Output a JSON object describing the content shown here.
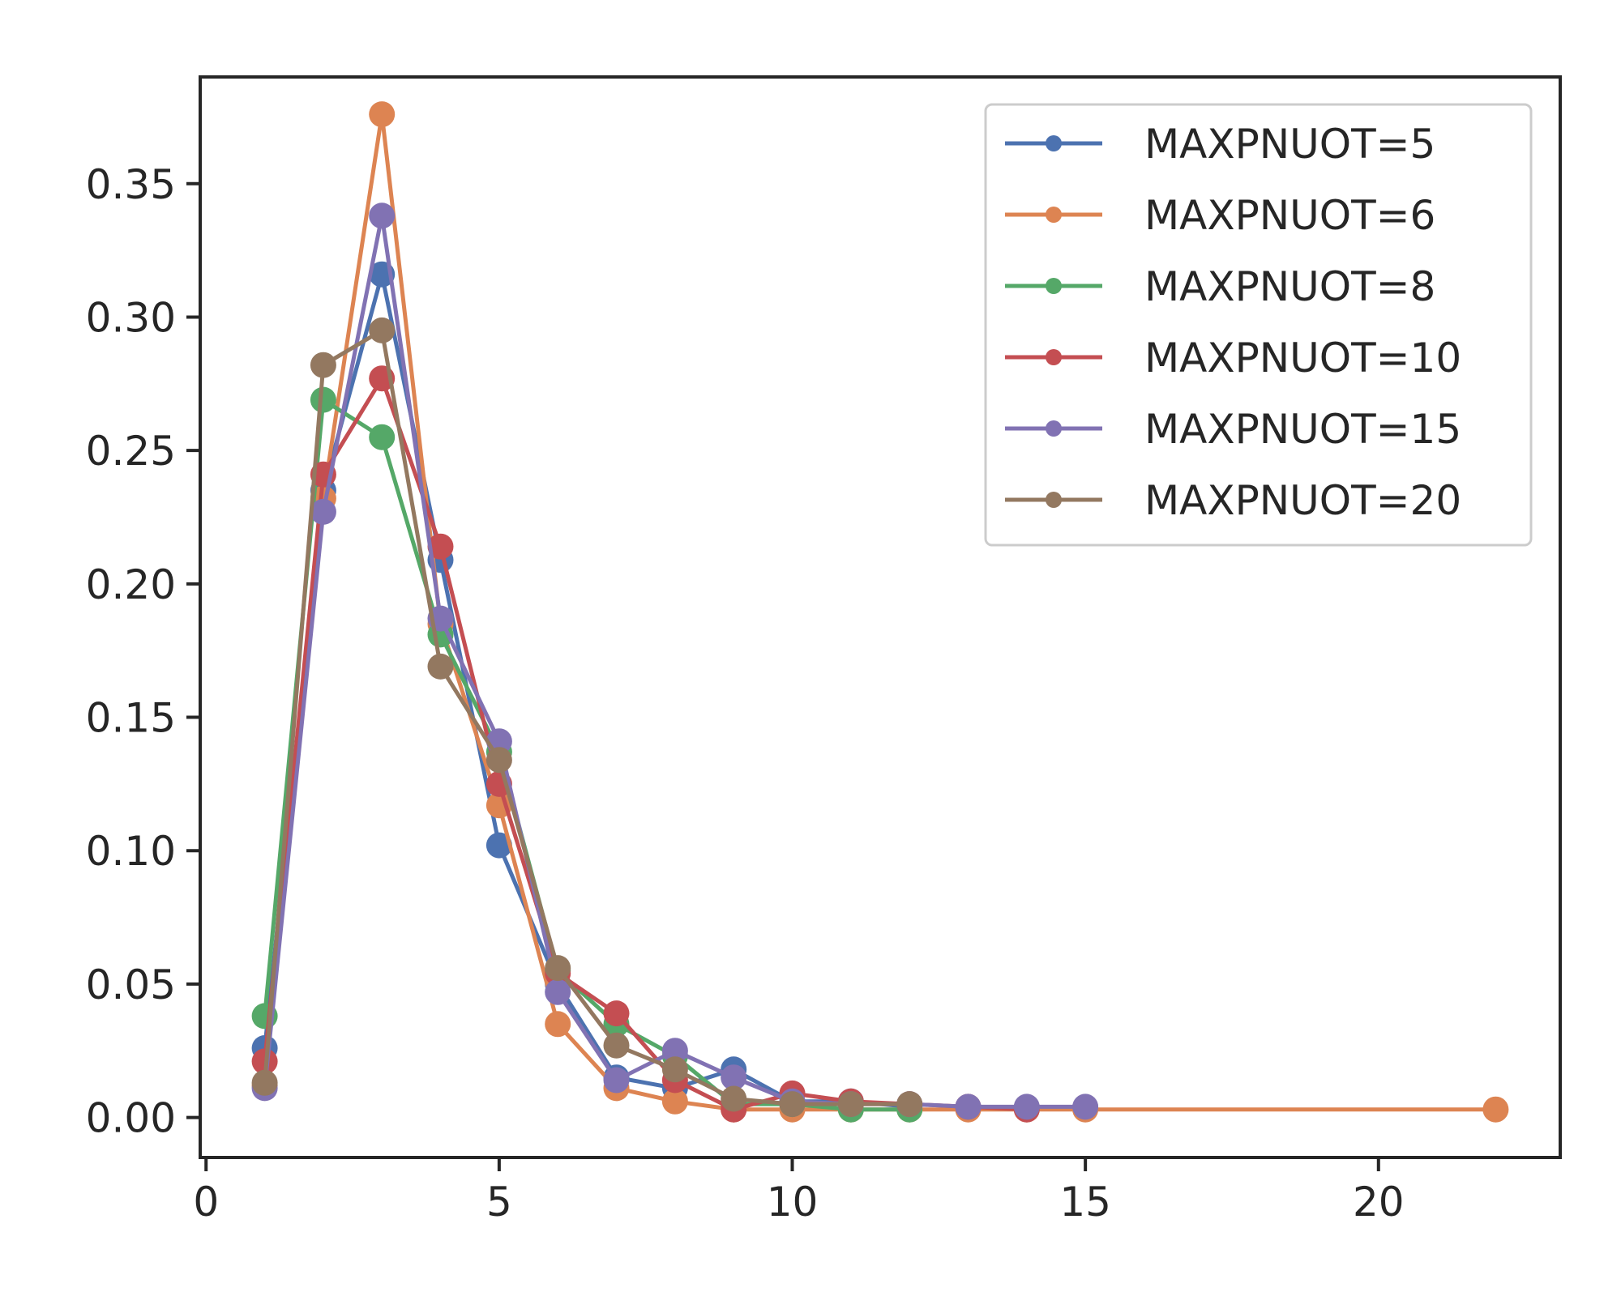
{
  "chart_data": {
    "type": "line",
    "title": "",
    "xlabel": "",
    "ylabel": "",
    "xlim": [
      -0.1,
      23.1
    ],
    "ylim": [
      -0.015,
      0.39
    ],
    "xticks": [
      0,
      5,
      10,
      15,
      20
    ],
    "yticks": [
      0.0,
      0.05,
      0.1,
      0.15,
      0.2,
      0.25,
      0.3,
      0.35
    ],
    "xtick_labels": [
      "0",
      "5",
      "10",
      "15",
      "20"
    ],
    "ytick_labels": [
      "0.00",
      "0.05",
      "0.10",
      "0.15",
      "0.20",
      "0.25",
      "0.30",
      "0.35"
    ],
    "grid": false,
    "legend_position": "top-right",
    "series": [
      {
        "name": "MAXPNUOT=5",
        "color": "#4c72b0",
        "x": [
          1,
          2,
          3,
          4,
          5,
          6,
          7,
          8,
          9,
          10,
          11,
          12
        ],
        "y": [
          0.026,
          0.235,
          0.316,
          0.209,
          0.102,
          0.05,
          0.015,
          0.011,
          0.018,
          0.006,
          0.006,
          0.004
        ]
      },
      {
        "name": "MAXPNUOT=6",
        "color": "#dd8452",
        "x": [
          1,
          2,
          3,
          4,
          5,
          6,
          7,
          8,
          9,
          10,
          11,
          12,
          13,
          14,
          15,
          22
        ],
        "y": [
          0.012,
          0.232,
          0.376,
          0.185,
          0.117,
          0.035,
          0.011,
          0.006,
          0.003,
          0.003,
          0.003,
          0.003,
          0.003,
          0.003,
          0.003,
          0.003
        ]
      },
      {
        "name": "MAXPNUOT=8",
        "color": "#55a868",
        "x": [
          1,
          2,
          3,
          4,
          5,
          6,
          7,
          8,
          9,
          10,
          11,
          12
        ],
        "y": [
          0.038,
          0.269,
          0.255,
          0.181,
          0.137,
          0.055,
          0.035,
          0.023,
          0.005,
          0.005,
          0.003,
          0.003
        ]
      },
      {
        "name": "MAXPNUOT=10",
        "color": "#c44e52",
        "x": [
          1,
          2,
          3,
          4,
          5,
          6,
          7,
          8,
          9,
          10,
          11,
          12,
          13,
          14
        ],
        "y": [
          0.021,
          0.241,
          0.277,
          0.214,
          0.125,
          0.054,
          0.039,
          0.014,
          0.003,
          0.009,
          0.006,
          0.005,
          0.004,
          0.003
        ]
      },
      {
        "name": "MAXPNUOT=15",
        "color": "#8172b3",
        "x": [
          1,
          2,
          3,
          4,
          5,
          6,
          7,
          8,
          9,
          10,
          11,
          12,
          13,
          14,
          15
        ],
        "y": [
          0.011,
          0.227,
          0.338,
          0.187,
          0.141,
          0.047,
          0.014,
          0.025,
          0.015,
          0.006,
          0.005,
          0.005,
          0.004,
          0.004,
          0.004
        ]
      },
      {
        "name": "MAXPNUOT=20",
        "color": "#937860",
        "x": [
          1,
          2,
          3,
          4,
          5,
          6,
          7,
          8,
          9,
          10,
          11,
          12
        ],
        "y": [
          0.013,
          0.282,
          0.295,
          0.169,
          0.134,
          0.056,
          0.027,
          0.018,
          0.007,
          0.005,
          0.005,
          0.005
        ]
      }
    ]
  }
}
